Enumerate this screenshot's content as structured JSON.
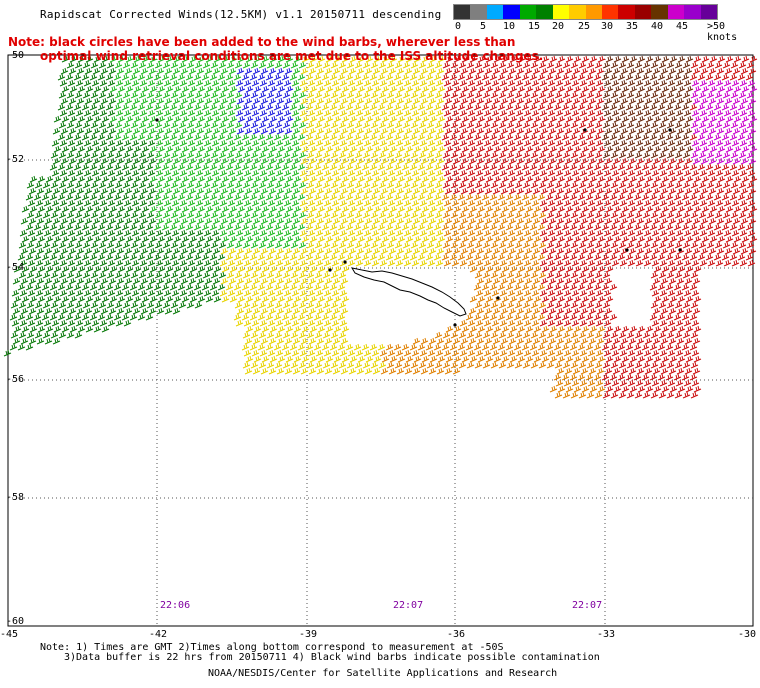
{
  "header": {
    "title": "Rapidscat Corrected Winds(12.5KM) v1.1 20150711 descending",
    "note_line1": "Note: black circles have been added to the wind barbs, wherever less than",
    "note_line2": "optimal wind retrieval conditions are met due to the ISS altitude changes."
  },
  "legend": {
    "labels": [
      "0",
      "5",
      "10",
      "15",
      "20",
      "25",
      "30",
      "35",
      "40",
      "45",
      ">50 knots"
    ],
    "colors": [
      "#333333",
      "#7f7f7f",
      "#00aaff",
      "#0000ff",
      "#00aa00",
      "#008000",
      "#ffff00",
      "#ffcc00",
      "#ff9900",
      "#ff3300",
      "#cc0000",
      "#990000",
      "#663300",
      "#cc00cc",
      "#9900cc",
      "#660099"
    ]
  },
  "axes": {
    "lat_labels": [
      "-50",
      "-52",
      "-54",
      "-56",
      "-58",
      "-60"
    ],
    "lon_labels": [
      "-45",
      "-42",
      "-39",
      "-36",
      "-33",
      "-30"
    ]
  },
  "times": [
    "22:06",
    "22:07",
    "22:07"
  ],
  "footer": {
    "line1": "Note: 1) Times are GMT 2)Times along bottom correspond to measurement at -50S",
    "line2": "3)Data buffer is 22 hrs from 20150711 4) Black wind barbs indicate possible contamination",
    "line3": "NOAA/NESDIS/Center for Satellite Applications and Research"
  },
  "wind_colors": {
    "light_green": "#22bb22",
    "dark_green": "#0a7a0a",
    "blue": "#2020dd",
    "yellow": "#e8d400",
    "orange": "#e08000",
    "red": "#cc1010",
    "brown": "#6b2a10",
    "magenta": "#cc00cc"
  }
}
